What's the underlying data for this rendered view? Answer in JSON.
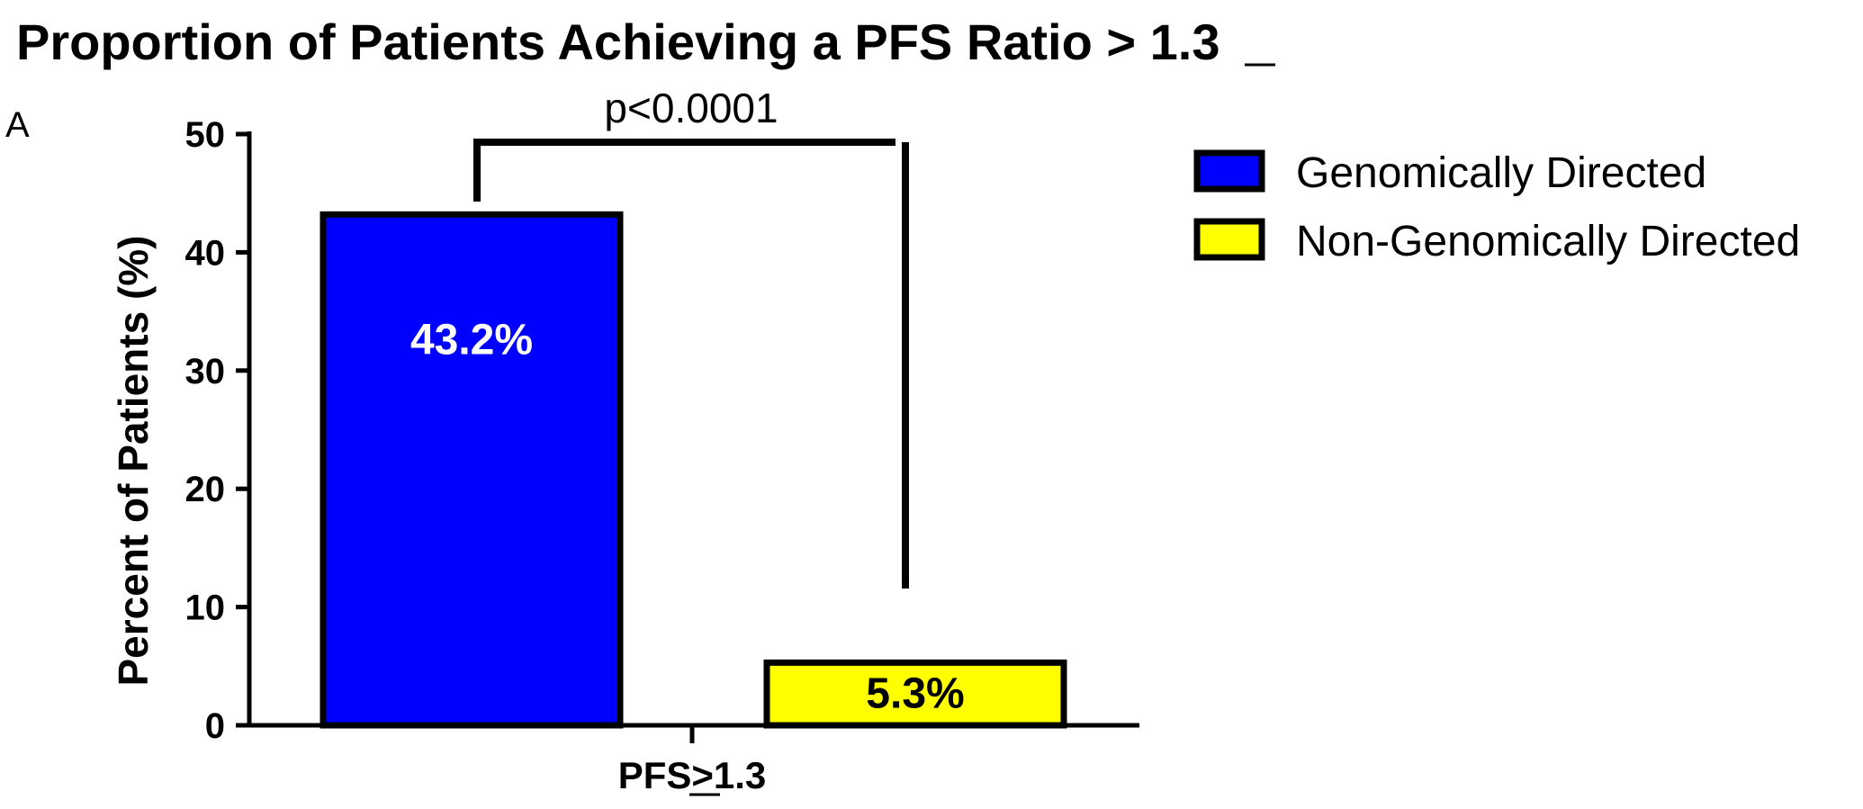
{
  "chart_data": {
    "type": "bar",
    "title": "Proportion of Patients Achieving a PFS Ratio ≥ 1.3",
    "panel_label": "A",
    "ylabel": "Percent of Patients (%)",
    "xlabel": "",
    "categories": [
      "PFS≥1.3"
    ],
    "ylim": [
      0,
      50
    ],
    "yticks": [
      0,
      10,
      20,
      30,
      40,
      50
    ],
    "grid": false,
    "legend_position": "top-right",
    "series": [
      {
        "name": "Genomically Directed",
        "values": [
          43.2
        ],
        "label": "43.2%",
        "color": "#0000ff",
        "label_color": "#ffffff"
      },
      {
        "name": "Non-Genomically Directed",
        "values": [
          5.3
        ],
        "label": "5.3%",
        "color": "#ffff00",
        "label_color": "#000000"
      }
    ],
    "annotations": [
      {
        "type": "significance-bracket",
        "text": "p<0.0001",
        "between": [
          "Genomically Directed",
          "Non-Genomically Directed"
        ]
      }
    ]
  }
}
